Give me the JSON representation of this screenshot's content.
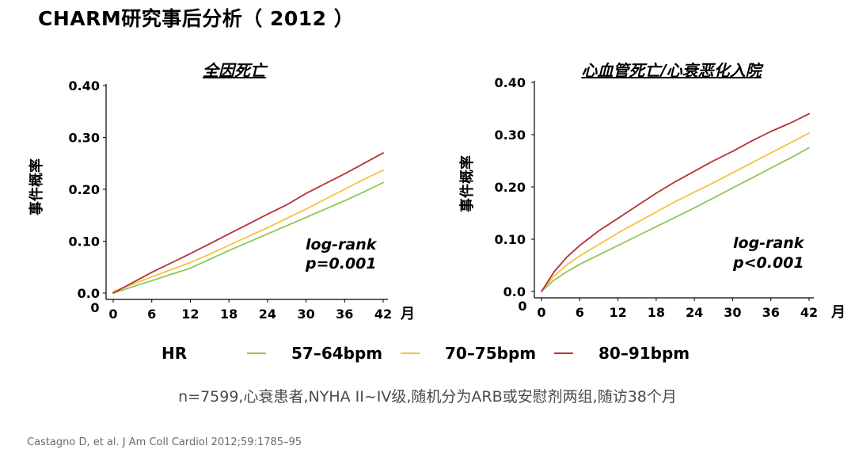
{
  "page": {
    "title": "CHARM研究事后分析（ 2012 ）",
    "footnote": "n=7599,心衰患者,NYHA II~IV级,随机分为ARB或安慰剂两组,随访38个月",
    "citation": "Castagno D, et al. J Am Coll Cardiol 2012;59:1785–95"
  },
  "legend": {
    "title": "HR",
    "items": [
      {
        "label": "57–64bpm",
        "color": "#8cc85a"
      },
      {
        "label": "70–75bpm",
        "color": "#f5c242"
      },
      {
        "label": "80–91bpm",
        "color": "#b83232"
      }
    ]
  },
  "chart_data": [
    {
      "type": "line",
      "title": "全因死亡",
      "ylabel": "事件概率",
      "xlabel": "月",
      "x_ticks": [
        0,
        6,
        12,
        18,
        24,
        30,
        36,
        42
      ],
      "y_ticks": [
        "0.0",
        "0.10",
        "0.20",
        "0.30",
        "0.40"
      ],
      "y_origin_label": "0",
      "xlim": [
        0,
        42
      ],
      "ylim": [
        0,
        0.4
      ],
      "annotation": [
        "log-rank",
        "p=0.001"
      ],
      "series": [
        {
          "name": "57–64bpm",
          "color": "#8cc85a",
          "x": [
            0,
            3,
            6,
            9,
            12,
            15,
            18,
            21,
            24,
            27,
            30,
            33,
            36,
            39,
            42
          ],
          "y": [
            0.0,
            0.012,
            0.024,
            0.036,
            0.048,
            0.065,
            0.082,
            0.098,
            0.114,
            0.13,
            0.146,
            0.162,
            0.178,
            0.195,
            0.213
          ]
        },
        {
          "name": "70–75bpm",
          "color": "#f5c242",
          "x": [
            0,
            3,
            6,
            9,
            12,
            15,
            18,
            21,
            24,
            27,
            30,
            33,
            36,
            39,
            42
          ],
          "y": [
            0.003,
            0.017,
            0.031,
            0.045,
            0.059,
            0.075,
            0.092,
            0.109,
            0.126,
            0.144,
            0.162,
            0.181,
            0.2,
            0.219,
            0.237
          ]
        },
        {
          "name": "80–91bpm",
          "color": "#b83232",
          "x": [
            0,
            3,
            6,
            9,
            12,
            15,
            18,
            21,
            24,
            27,
            30,
            33,
            36,
            39,
            42
          ],
          "y": [
            0.0,
            0.02,
            0.04,
            0.058,
            0.076,
            0.095,
            0.114,
            0.133,
            0.152,
            0.17,
            0.192,
            0.211,
            0.23,
            0.25,
            0.27
          ]
        }
      ]
    },
    {
      "type": "line",
      "title": "心血管死亡/心衰恶化入院",
      "ylabel": "事件概率",
      "xlabel": "月",
      "x_ticks": [
        0,
        6,
        12,
        18,
        24,
        30,
        36,
        42
      ],
      "y_ticks": [
        "0.0",
        "0.10",
        "0.20",
        "0.30",
        "0.40"
      ],
      "y_origin_label": "0",
      "xlim": [
        0,
        42
      ],
      "ylim": [
        0,
        0.4
      ],
      "annotation": [
        "log-rank",
        "p<0.001"
      ],
      "series": [
        {
          "name": "57–64bpm",
          "color": "#8cc85a",
          "x": [
            0,
            2,
            4,
            6,
            9,
            12,
            15,
            18,
            21,
            24,
            27,
            30,
            33,
            36,
            39,
            42
          ],
          "y": [
            0.0,
            0.022,
            0.038,
            0.052,
            0.07,
            0.088,
            0.106,
            0.124,
            0.142,
            0.16,
            0.179,
            0.198,
            0.217,
            0.236,
            0.255,
            0.275
          ]
        },
        {
          "name": "70–75bpm",
          "color": "#f5c242",
          "x": [
            0,
            2,
            4,
            6,
            9,
            12,
            15,
            18,
            21,
            24,
            27,
            30,
            33,
            36,
            39,
            42
          ],
          "y": [
            0.0,
            0.03,
            0.051,
            0.068,
            0.09,
            0.112,
            0.132,
            0.152,
            0.172,
            0.19,
            0.208,
            0.227,
            0.246,
            0.265,
            0.284,
            0.303
          ]
        },
        {
          "name": "80–91bpm",
          "color": "#b83232",
          "x": [
            0,
            2,
            4,
            6,
            9,
            12,
            15,
            18,
            21,
            24,
            27,
            30,
            33,
            36,
            39,
            42
          ],
          "y": [
            0.0,
            0.038,
            0.066,
            0.088,
            0.116,
            0.14,
            0.164,
            0.188,
            0.21,
            0.23,
            0.25,
            0.268,
            0.288,
            0.306,
            0.322,
            0.34
          ]
        }
      ]
    }
  ]
}
